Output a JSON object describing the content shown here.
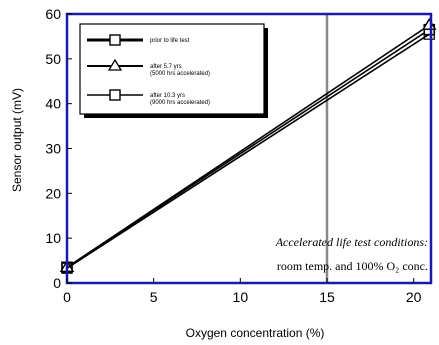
{
  "chart_data": {
    "type": "line",
    "xlabel": "Oxygen concentration (%)",
    "ylabel": "Sensor output (mV)",
    "xlim": [
      0,
      21
    ],
    "ylim": [
      0,
      60
    ],
    "x_ticks": [
      0,
      5,
      10,
      15,
      20
    ],
    "y_ticks": [
      0,
      10,
      20,
      30,
      40,
      50,
      60
    ],
    "x_tick_labels": [
      "0",
      "5",
      "10",
      "15",
      "20"
    ],
    "y_tick_labels": [
      "0",
      "10",
      "20",
      "30",
      "40",
      "50",
      "60"
    ],
    "grid": "vertical reference line at x=15",
    "legend_placement": "top-left",
    "series": [
      {
        "name": "prior to life test",
        "name_line2": "",
        "marker": "square",
        "color": "#000000",
        "x": [
          0,
          20.9
        ],
        "y": [
          3.5,
          56.5
        ]
      },
      {
        "name": "after 5.7 yrs",
        "name_line2": "(5000 hrs accelerated)",
        "marker": "triangle",
        "color": "#000000",
        "x": [
          0,
          20.9
        ],
        "y": [
          3.5,
          57.5
        ]
      },
      {
        "name": "after 10.3 yrs",
        "name_line2": "(9000 hrs accelerated)",
        "marker": "square-open",
        "color": "#000000",
        "x": [
          0,
          20.9
        ],
        "y": [
          3.3,
          55.5
        ]
      }
    ],
    "annotation": {
      "line1": "Accelerated life test conditions:",
      "line2": "room temp. and 100% O₂ conc."
    },
    "frame_color": "#1a1aa8"
  }
}
